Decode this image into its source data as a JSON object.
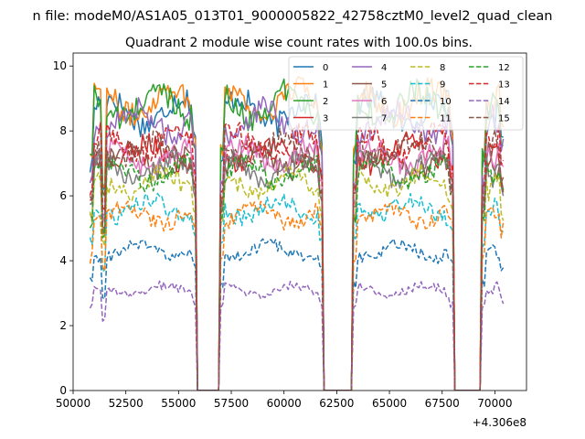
{
  "chart_data": {
    "type": "line",
    "suptitle": "n file: modeM0/AS1A05_013T01_9000005822_42758cztM0_level2_quad_clean",
    "title": "Quadrant 2 module wise count rates with 100.0s bins.",
    "xlabel": "",
    "ylabel": "",
    "x_offset_label": "+4.306e8",
    "xlim": [
      50000,
      71500
    ],
    "ylim": [
      0,
      10.4
    ],
    "grid": false,
    "legend": {
      "placement": "top-right",
      "ncol": 4
    },
    "x_ticks": [
      {
        "value": 50000,
        "label": "50000"
      },
      {
        "value": 52500,
        "label": "52500"
      },
      {
        "value": 55000,
        "label": "55000"
      },
      {
        "value": 57500,
        "label": "57500"
      },
      {
        "value": 60000,
        "label": "60000"
      },
      {
        "value": 62500,
        "label": "62500"
      },
      {
        "value": 65000,
        "label": "65000"
      },
      {
        "value": 67500,
        "label": "67500"
      },
      {
        "value": 70000,
        "label": "70000"
      }
    ],
    "y_ticks": [
      {
        "value": 0,
        "label": "0"
      },
      {
        "value": 2,
        "label": "2"
      },
      {
        "value": 4,
        "label": "4"
      },
      {
        "value": 6,
        "label": "6"
      },
      {
        "value": 8,
        "label": "8"
      },
      {
        "value": 10,
        "label": "10"
      }
    ],
    "segments": [
      [
        50800,
        55800
      ],
      [
        57000,
        61800
      ],
      [
        63300,
        68000
      ],
      [
        69400,
        70400
      ]
    ],
    "gaps": [
      [
        55900,
        56900
      ],
      [
        61900,
        63200
      ],
      [
        68100,
        69300
      ]
    ],
    "bin_seconds": 100,
    "series": [
      {
        "name": "0",
        "color": "#1f77b4",
        "dash": "solid",
        "level": 8.6
      },
      {
        "name": "1",
        "color": "#ff7f0e",
        "dash": "solid",
        "level": 8.9
      },
      {
        "name": "2",
        "color": "#2ca02c",
        "dash": "solid",
        "level": 8.8
      },
      {
        "name": "3",
        "color": "#d62728",
        "dash": "solid",
        "level": 7.3
      },
      {
        "name": "4",
        "color": "#9467bd",
        "dash": "solid",
        "level": 8.3
      },
      {
        "name": "5",
        "color": "#8c564b",
        "dash": "solid",
        "level": 7.1
      },
      {
        "name": "6",
        "color": "#e377c2",
        "dash": "solid",
        "level": 7.2
      },
      {
        "name": "7",
        "color": "#7f7f7f",
        "dash": "solid",
        "level": 6.8
      },
      {
        "name": "8",
        "color": "#bcbd22",
        "dash": "dashed",
        "level": 6.4
      },
      {
        "name": "9",
        "color": "#17becf",
        "dash": "dashed",
        "level": 5.6
      },
      {
        "name": "10",
        "color": "#1f77b4",
        "dash": "dashed",
        "level": 4.3
      },
      {
        "name": "11",
        "color": "#ff7f0e",
        "dash": "dashed",
        "level": 5.4
      },
      {
        "name": "12",
        "color": "#2ca02c",
        "dash": "dashed",
        "level": 6.7
      },
      {
        "name": "13",
        "color": "#d62728",
        "dash": "dashed",
        "level": 7.6
      },
      {
        "name": "14",
        "color": "#9467bd",
        "dash": "dashed",
        "level": 3.1
      },
      {
        "name": "15",
        "color": "#8c564b",
        "dash": "dashed",
        "level": 7.4
      }
    ]
  }
}
